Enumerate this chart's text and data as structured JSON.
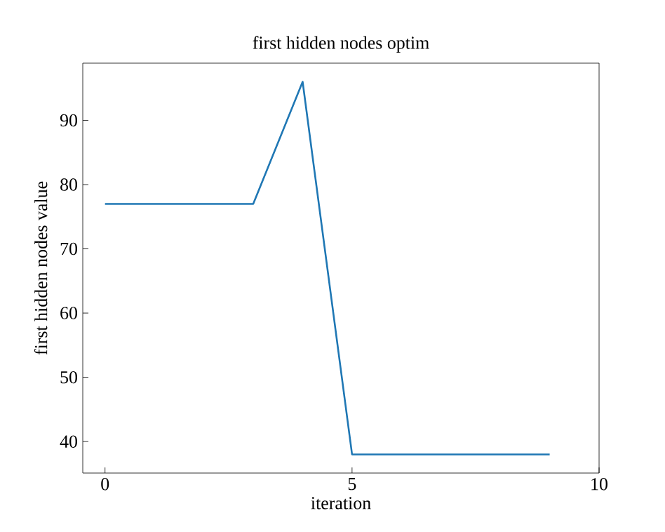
{
  "chart_data": {
    "type": "line",
    "title": "first hidden nodes optim",
    "xlabel": "iteration",
    "ylabel": "first hidden nodes value",
    "x": [
      0,
      1,
      2,
      3,
      4,
      5,
      6,
      7,
      8,
      9
    ],
    "series": [
      {
        "color": "#1f77b4",
        "values": [
          77,
          77,
          77,
          77,
          96,
          38,
          38,
          38,
          38,
          38
        ]
      }
    ],
    "xlim": [
      -0.45,
      10
    ],
    "ylim": [
      35.1,
      98.9
    ],
    "xticks": [
      0,
      5,
      10
    ],
    "yticks": [
      40,
      50,
      60,
      70,
      80,
      90
    ]
  }
}
